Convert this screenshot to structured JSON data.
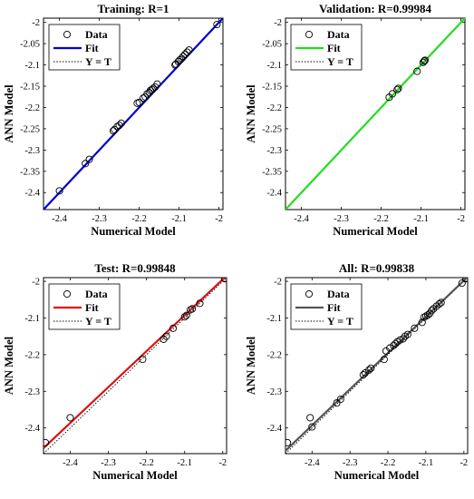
{
  "chart_data": [
    {
      "type": "scatter",
      "title": "Training: R=1",
      "xlabel": "Numerical Model",
      "ylabel": "ANN Model",
      "xlim": [
        -2.44,
        -1.99
      ],
      "ylim": [
        -2.44,
        -1.99
      ],
      "xticks": [
        "-2.4",
        "-2.3",
        "-2.2",
        "-2.1",
        "-2"
      ],
      "yticks": [
        "-2",
        "-2.05",
        "-2.1",
        "-2.15",
        "-2.2",
        "-2.25",
        "-2.3",
        "-2.35",
        "-2.4"
      ],
      "fit_color": "#0000cc",
      "fit": [
        [
          -2.44,
          -2.44
        ],
        [
          -1.99,
          -1.99
        ]
      ],
      "legend": [
        "Data",
        "Fit",
        "Y = T"
      ],
      "legend_position": "top-left",
      "points": [
        [
          -2.4,
          -2.396
        ],
        [
          -2.335,
          -2.332
        ],
        [
          -2.325,
          -2.322
        ],
        [
          -2.265,
          -2.255
        ],
        [
          -2.262,
          -2.252
        ],
        [
          -2.255,
          -2.245
        ],
        [
          -2.25,
          -2.242
        ],
        [
          -2.245,
          -2.237
        ],
        [
          -2.205,
          -2.19
        ],
        [
          -2.2,
          -2.188
        ],
        [
          -2.19,
          -2.178
        ],
        [
          -2.185,
          -2.175
        ],
        [
          -2.18,
          -2.168
        ],
        [
          -2.175,
          -2.165
        ],
        [
          -2.172,
          -2.16
        ],
        [
          -2.168,
          -2.158
        ],
        [
          -2.165,
          -2.155
        ],
        [
          -2.16,
          -2.152
        ],
        [
          -2.155,
          -2.145
        ],
        [
          -2.11,
          -2.1
        ],
        [
          -2.108,
          -2.098
        ],
        [
          -2.102,
          -2.092
        ],
        [
          -2.098,
          -2.088
        ],
        [
          -2.094,
          -2.085
        ],
        [
          -2.09,
          -2.08
        ],
        [
          -2.085,
          -2.075
        ],
        [
          -2.08,
          -2.07
        ],
        [
          -2.075,
          -2.065
        ],
        [
          -2.005,
          -2.005
        ]
      ]
    },
    {
      "type": "scatter",
      "title": "Validation: R=0.99984",
      "xlabel": "Numerical Model",
      "ylabel": "ANN Model",
      "xlim": [
        -2.44,
        -1.99
      ],
      "ylim": [
        -2.44,
        -1.99
      ],
      "xticks": [
        "-2.4",
        "-2.3",
        "-2.2",
        "-2.1",
        "-2"
      ],
      "yticks": [
        "-2",
        "-2.05",
        "-2.1",
        "-2.15",
        "-2.2",
        "-2.25",
        "-2.3",
        "-2.35",
        "-2.4"
      ],
      "fit_color": "#22dd22",
      "fit": [
        [
          -2.44,
          -2.44
        ],
        [
          -1.99,
          -1.99
        ]
      ],
      "legend": [
        "Data",
        "Fit",
        "Y = T"
      ],
      "legend_position": "top-left",
      "points": [
        [
          -2.18,
          -2.176
        ],
        [
          -2.172,
          -2.168
        ],
        [
          -2.16,
          -2.158
        ],
        [
          -2.157,
          -2.155
        ],
        [
          -2.11,
          -2.115
        ],
        [
          -2.095,
          -2.094
        ],
        [
          -2.092,
          -2.091
        ],
        [
          -2.09,
          -2.089
        ]
      ]
    },
    {
      "type": "scatter",
      "title": "Test: R=0.99848",
      "xlabel": "Numerical Model",
      "ylabel": "ANN Model",
      "xlim": [
        -2.47,
        -1.99
      ],
      "ylim": [
        -2.47,
        -1.99
      ],
      "xticks": [
        "-2.4",
        "-2.3",
        "-2.2",
        "-2.1",
        "-2"
      ],
      "yticks": [
        "-2",
        "-2.1",
        "-2.2",
        "-2.3",
        "-2.4"
      ],
      "fit_color": "#dd1111",
      "fit": [
        [
          -2.47,
          -2.455
        ],
        [
          -1.99,
          -1.985
        ]
      ],
      "legend": [
        "Data",
        "Fit",
        "Y = T"
      ],
      "legend_position": "top-left",
      "points": [
        [
          -2.465,
          -2.44
        ],
        [
          -2.4,
          -2.372
        ],
        [
          -2.21,
          -2.213
        ],
        [
          -2.155,
          -2.158
        ],
        [
          -2.148,
          -2.15
        ],
        [
          -2.13,
          -2.128
        ],
        [
          -2.1,
          -2.097
        ],
        [
          -2.095,
          -2.093
        ],
        [
          -2.085,
          -2.078
        ],
        [
          -2.08,
          -2.075
        ],
        [
          -2.06,
          -2.06
        ],
        [
          -1.995,
          -1.993
        ]
      ]
    },
    {
      "type": "scatter",
      "title": "All: R=0.99838",
      "xlabel": "Numerical Model",
      "ylabel": "ANN Model",
      "xlim": [
        -2.47,
        -1.99
      ],
      "ylim": [
        -2.47,
        -1.99
      ],
      "xticks": [
        "-2.4",
        "-2.3",
        "-2.2",
        "-2.1",
        "-2"
      ],
      "yticks": [
        "-2",
        "-2.1",
        "-2.2",
        "-2.3",
        "-2.4"
      ],
      "fit_color": "#555555",
      "fit": [
        [
          -2.47,
          -2.462
        ],
        [
          -1.99,
          -1.988
        ]
      ],
      "legend": [
        "Data",
        "Fit",
        "Y = T"
      ],
      "legend_position": "top-left",
      "points": [
        [
          -2.465,
          -2.44
        ],
        [
          -2.405,
          -2.372
        ],
        [
          -2.4,
          -2.397
        ],
        [
          -2.335,
          -2.332
        ],
        [
          -2.325,
          -2.322
        ],
        [
          -2.265,
          -2.255
        ],
        [
          -2.26,
          -2.25
        ],
        [
          -2.25,
          -2.242
        ],
        [
          -2.245,
          -2.237
        ],
        [
          -2.21,
          -2.213
        ],
        [
          -2.205,
          -2.19
        ],
        [
          -2.195,
          -2.182
        ],
        [
          -2.185,
          -2.175
        ],
        [
          -2.18,
          -2.17
        ],
        [
          -2.175,
          -2.165
        ],
        [
          -2.168,
          -2.16
        ],
        [
          -2.16,
          -2.157
        ],
        [
          -2.155,
          -2.15
        ],
        [
          -2.148,
          -2.145
        ],
        [
          -2.13,
          -2.128
        ],
        [
          -2.11,
          -2.112
        ],
        [
          -2.105,
          -2.098
        ],
        [
          -2.1,
          -2.095
        ],
        [
          -2.095,
          -2.092
        ],
        [
          -2.09,
          -2.088
        ],
        [
          -2.085,
          -2.08
        ],
        [
          -2.08,
          -2.075
        ],
        [
          -2.072,
          -2.068
        ],
        [
          -2.065,
          -2.062
        ],
        [
          -2.06,
          -2.058
        ],
        [
          -2.005,
          -2.005
        ],
        [
          -1.995,
          -1.993
        ]
      ]
    }
  ]
}
